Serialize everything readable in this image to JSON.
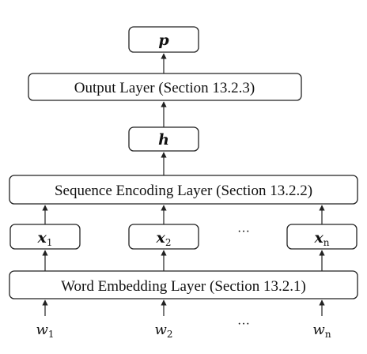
{
  "output": {
    "symbol": "p"
  },
  "output_layer": {
    "label": "Output Layer (Section 13.2.3)"
  },
  "hidden": {
    "symbol": "h"
  },
  "sequence_layer": {
    "label": "Sequence Encoding Layer (Section 13.2.2)"
  },
  "embeddings": [
    {
      "base": "x",
      "sub": "1"
    },
    {
      "base": "x",
      "sub": "2"
    },
    {
      "base": "x",
      "sub": "n"
    }
  ],
  "embedding_ellipsis": "···",
  "word_layer": {
    "label": "Word Embedding Layer (Section 13.2.1)"
  },
  "inputs": [
    {
      "base": "w",
      "sub": "1"
    },
    {
      "base": "w",
      "sub": "2"
    },
    {
      "base": "w",
      "sub": "n"
    }
  ],
  "input_ellipsis": "···"
}
